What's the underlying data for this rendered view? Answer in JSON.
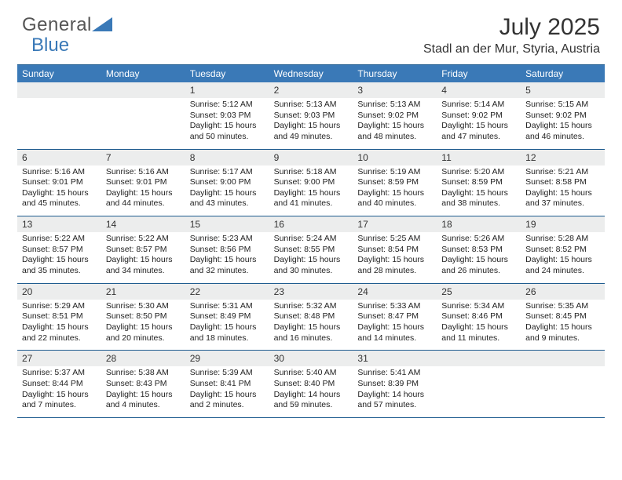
{
  "brand": {
    "part1": "General",
    "part2": "Blue"
  },
  "title": "July 2025",
  "location": "Stadl an der Mur, Styria, Austria",
  "colors": {
    "header_bg": "#3a79b7",
    "border": "#1f5c8f",
    "day_stripe": "#eceded",
    "text": "#222222",
    "logo_gray": "#555555",
    "logo_blue": "#3a79b7"
  },
  "weekdays": [
    "Sunday",
    "Monday",
    "Tuesday",
    "Wednesday",
    "Thursday",
    "Friday",
    "Saturday"
  ],
  "weeks": [
    [
      null,
      null,
      {
        "n": "1",
        "sunrise": "5:12 AM",
        "sunset": "9:03 PM",
        "daylight": "15 hours and 50 minutes."
      },
      {
        "n": "2",
        "sunrise": "5:13 AM",
        "sunset": "9:03 PM",
        "daylight": "15 hours and 49 minutes."
      },
      {
        "n": "3",
        "sunrise": "5:13 AM",
        "sunset": "9:02 PM",
        "daylight": "15 hours and 48 minutes."
      },
      {
        "n": "4",
        "sunrise": "5:14 AM",
        "sunset": "9:02 PM",
        "daylight": "15 hours and 47 minutes."
      },
      {
        "n": "5",
        "sunrise": "5:15 AM",
        "sunset": "9:02 PM",
        "daylight": "15 hours and 46 minutes."
      }
    ],
    [
      {
        "n": "6",
        "sunrise": "5:16 AM",
        "sunset": "9:01 PM",
        "daylight": "15 hours and 45 minutes."
      },
      {
        "n": "7",
        "sunrise": "5:16 AM",
        "sunset": "9:01 PM",
        "daylight": "15 hours and 44 minutes."
      },
      {
        "n": "8",
        "sunrise": "5:17 AM",
        "sunset": "9:00 PM",
        "daylight": "15 hours and 43 minutes."
      },
      {
        "n": "9",
        "sunrise": "5:18 AM",
        "sunset": "9:00 PM",
        "daylight": "15 hours and 41 minutes."
      },
      {
        "n": "10",
        "sunrise": "5:19 AM",
        "sunset": "8:59 PM",
        "daylight": "15 hours and 40 minutes."
      },
      {
        "n": "11",
        "sunrise": "5:20 AM",
        "sunset": "8:59 PM",
        "daylight": "15 hours and 38 minutes."
      },
      {
        "n": "12",
        "sunrise": "5:21 AM",
        "sunset": "8:58 PM",
        "daylight": "15 hours and 37 minutes."
      }
    ],
    [
      {
        "n": "13",
        "sunrise": "5:22 AM",
        "sunset": "8:57 PM",
        "daylight": "15 hours and 35 minutes."
      },
      {
        "n": "14",
        "sunrise": "5:22 AM",
        "sunset": "8:57 PM",
        "daylight": "15 hours and 34 minutes."
      },
      {
        "n": "15",
        "sunrise": "5:23 AM",
        "sunset": "8:56 PM",
        "daylight": "15 hours and 32 minutes."
      },
      {
        "n": "16",
        "sunrise": "5:24 AM",
        "sunset": "8:55 PM",
        "daylight": "15 hours and 30 minutes."
      },
      {
        "n": "17",
        "sunrise": "5:25 AM",
        "sunset": "8:54 PM",
        "daylight": "15 hours and 28 minutes."
      },
      {
        "n": "18",
        "sunrise": "5:26 AM",
        "sunset": "8:53 PM",
        "daylight": "15 hours and 26 minutes."
      },
      {
        "n": "19",
        "sunrise": "5:28 AM",
        "sunset": "8:52 PM",
        "daylight": "15 hours and 24 minutes."
      }
    ],
    [
      {
        "n": "20",
        "sunrise": "5:29 AM",
        "sunset": "8:51 PM",
        "daylight": "15 hours and 22 minutes."
      },
      {
        "n": "21",
        "sunrise": "5:30 AM",
        "sunset": "8:50 PM",
        "daylight": "15 hours and 20 minutes."
      },
      {
        "n": "22",
        "sunrise": "5:31 AM",
        "sunset": "8:49 PM",
        "daylight": "15 hours and 18 minutes."
      },
      {
        "n": "23",
        "sunrise": "5:32 AM",
        "sunset": "8:48 PM",
        "daylight": "15 hours and 16 minutes."
      },
      {
        "n": "24",
        "sunrise": "5:33 AM",
        "sunset": "8:47 PM",
        "daylight": "15 hours and 14 minutes."
      },
      {
        "n": "25",
        "sunrise": "5:34 AM",
        "sunset": "8:46 PM",
        "daylight": "15 hours and 11 minutes."
      },
      {
        "n": "26",
        "sunrise": "5:35 AM",
        "sunset": "8:45 PM",
        "daylight": "15 hours and 9 minutes."
      }
    ],
    [
      {
        "n": "27",
        "sunrise": "5:37 AM",
        "sunset": "8:44 PM",
        "daylight": "15 hours and 7 minutes."
      },
      {
        "n": "28",
        "sunrise": "5:38 AM",
        "sunset": "8:43 PM",
        "daylight": "15 hours and 4 minutes."
      },
      {
        "n": "29",
        "sunrise": "5:39 AM",
        "sunset": "8:41 PM",
        "daylight": "15 hours and 2 minutes."
      },
      {
        "n": "30",
        "sunrise": "5:40 AM",
        "sunset": "8:40 PM",
        "daylight": "14 hours and 59 minutes."
      },
      {
        "n": "31",
        "sunrise": "5:41 AM",
        "sunset": "8:39 PM",
        "daylight": "14 hours and 57 minutes."
      },
      null,
      null
    ]
  ],
  "labels": {
    "sunrise": "Sunrise:",
    "sunset": "Sunset:",
    "daylight": "Daylight:"
  }
}
